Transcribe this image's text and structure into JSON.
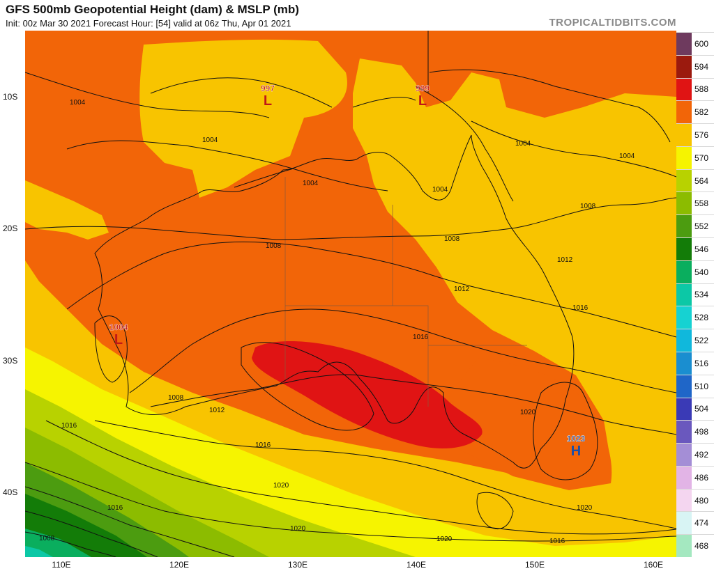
{
  "header": {
    "title": "GFS 500mb Geopotential Height (dam) & MSLP (mb)",
    "subtitle": "Init: 00z Mar 30 2021   Forecast Hour: [54]   valid at 06z Thu, Apr 01 2021",
    "brand": "TROPICALTIDBITS.COM"
  },
  "axes": {
    "lat_labels": [
      "10S",
      "20S",
      "30S",
      "40S"
    ],
    "lon_labels": [
      "110E",
      "120E",
      "130E",
      "140E",
      "150E",
      "160E"
    ]
  },
  "legend": {
    "values": [
      "600",
      "594",
      "588",
      "582",
      "576",
      "570",
      "564",
      "558",
      "552",
      "546",
      "540",
      "534",
      "528",
      "522",
      "516",
      "510",
      "504",
      "498",
      "492",
      "486",
      "480",
      "474",
      "468"
    ],
    "colors": [
      "#6e3a5e",
      "#9b1a0e",
      "#e01414",
      "#f26508",
      "#f8c400",
      "#f6f400",
      "#b8d200",
      "#8cbc00",
      "#4c9c10",
      "#137c08",
      "#0aae5e",
      "#0cc8a6",
      "#16d2d2",
      "#10b8dc",
      "#1a8ed0",
      "#1f66c8",
      "#3a3ab6",
      "#6a58be",
      "#a48ed6",
      "#e2b4e6",
      "#f4d6f0",
      "#d8f4f4",
      "#a4e8c0"
    ]
  },
  "map": {
    "pressure_centers": [
      {
        "type": "L",
        "value": "997",
        "color": "#c01818"
      },
      {
        "type": "L",
        "value": "999",
        "color": "#c01818"
      },
      {
        "type": "L",
        "value": "1004",
        "color": "#c01818"
      },
      {
        "type": "H",
        "value": "1023",
        "color": "#1a4fa8"
      }
    ],
    "contour_labels": [
      "1004",
      "1004",
      "1004",
      "1004",
      "1004",
      "1004",
      "1008",
      "1008",
      "1008",
      "1008",
      "1012",
      "1012",
      "1012",
      "1016",
      "1016",
      "1016",
      "1016",
      "1016",
      "1016",
      "1020",
      "1020",
      "1020",
      "1020",
      "1020",
      "1008"
    ]
  }
}
